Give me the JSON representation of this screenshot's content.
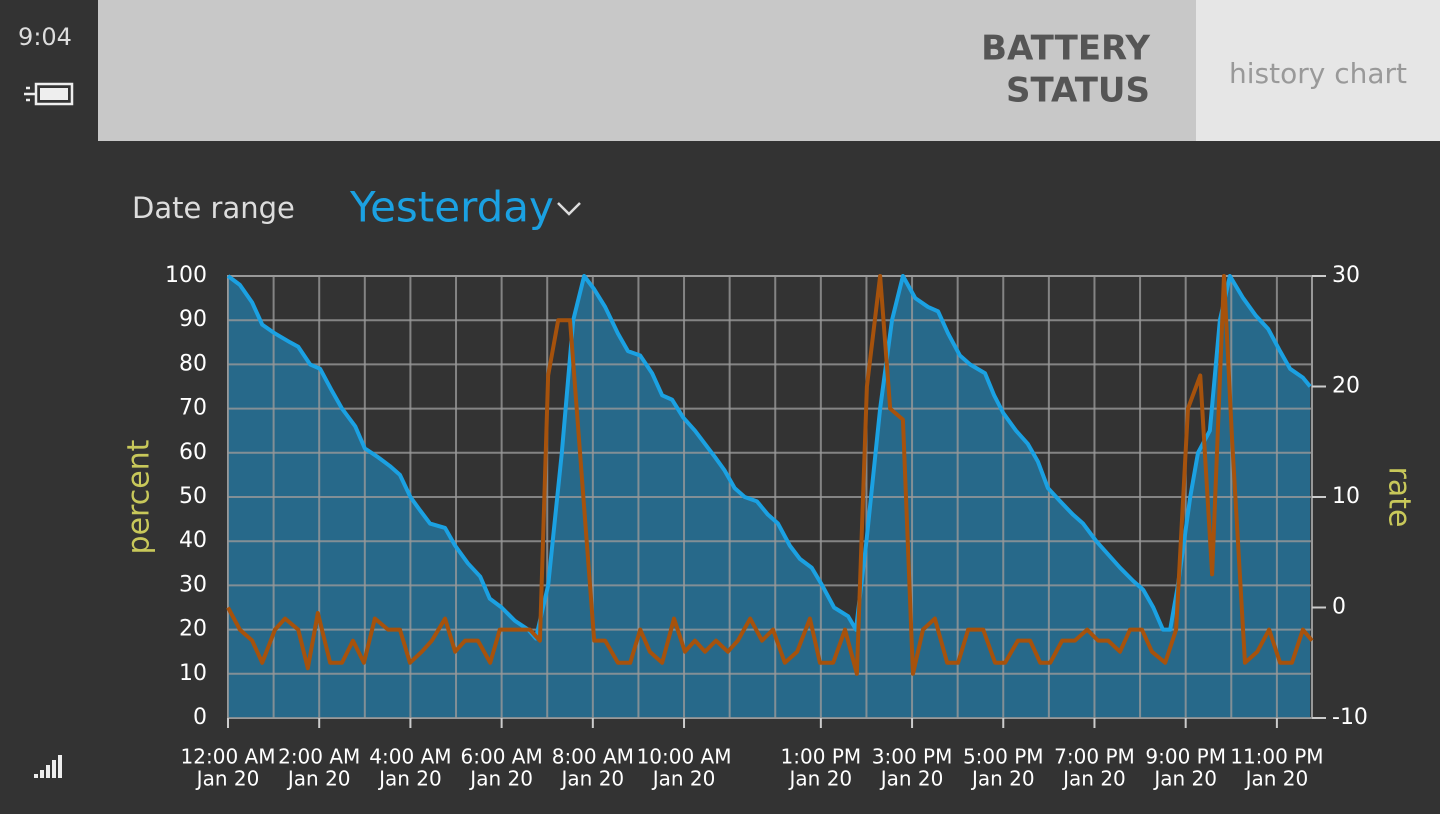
{
  "status_bar": {
    "time": "9:04"
  },
  "header": {
    "title": [
      "BATTERY",
      "STATUS"
    ],
    "tab": "history chart"
  },
  "date_range": {
    "label": "Date range",
    "value": "Yesterday"
  },
  "chart_data": {
    "type": "line",
    "ylabel": "percent",
    "y2label": "rate",
    "xlim": [
      0,
      23.77
    ],
    "ylim": [
      0,
      100
    ],
    "y2lim": [
      -10,
      30
    ],
    "yticks": [
      0,
      10,
      20,
      30,
      40,
      50,
      60,
      70,
      80,
      90,
      100
    ],
    "y2ticks": [
      -10,
      0,
      10,
      20,
      30
    ],
    "grid": true,
    "xticks": [
      {
        "value": 0,
        "label": "12:00 AM",
        "date": "Jan 20"
      },
      {
        "value": 1,
        "label": null
      },
      {
        "value": 2,
        "label": "2:00 AM",
        "date": "Jan 20"
      },
      {
        "value": 3,
        "label": null
      },
      {
        "value": 4,
        "label": "4:00 AM",
        "date": "Jan 20"
      },
      {
        "value": 5,
        "label": null
      },
      {
        "value": 6,
        "label": "6:00 AM",
        "date": "Jan 20"
      },
      {
        "value": 7,
        "label": null
      },
      {
        "value": 8,
        "label": "8:00 AM",
        "date": "Jan 20"
      },
      {
        "value": 9,
        "label": null
      },
      {
        "value": 10,
        "label": "10:00 AM",
        "date": "Jan 20"
      },
      {
        "value": 11,
        "label": null
      },
      {
        "value": 12,
        "label": null
      },
      {
        "value": 13,
        "label": "1:00 PM",
        "date": "Jan 20"
      },
      {
        "value": 14,
        "label": null
      },
      {
        "value": 15,
        "label": "3:00 PM",
        "date": "Jan 20"
      },
      {
        "value": 16,
        "label": null
      },
      {
        "value": 17,
        "label": "5:00 PM",
        "date": "Jan 20"
      },
      {
        "value": 18,
        "label": null
      },
      {
        "value": 19,
        "label": "7:00 PM",
        "date": "Jan 20"
      },
      {
        "value": 20,
        "label": null
      },
      {
        "value": 21,
        "label": "9:00 PM",
        "date": "Jan 20"
      },
      {
        "value": 22,
        "label": null
      },
      {
        "value": 23,
        "label": "11:00 PM",
        "date": "Jan 20"
      }
    ],
    "series": [
      {
        "color": "#1ba1e2",
        "fill": "#27698a",
        "x": [
          0,
          0.26,
          0.53,
          0.75,
          1.03,
          1.36,
          1.54,
          1.8,
          2.02,
          2.28,
          2.5,
          2.79,
          3.0,
          3.29,
          3.55,
          3.77,
          4.0,
          4.21,
          4.43,
          4.76,
          4.98,
          5.26,
          5.53,
          5.74,
          6.0,
          6.29,
          6.58,
          6.75,
          7.02,
          7.32,
          7.57,
          7.81,
          8.03,
          8.27,
          8.55,
          8.77,
          9.04,
          9.3,
          9.52,
          9.74,
          9.98,
          10.24,
          10.46,
          10.68,
          10.89,
          11.11,
          11.33,
          11.6,
          11.84,
          12.06,
          12.32,
          12.54,
          12.8,
          13.03,
          13.29,
          13.6,
          13.77,
          14.0,
          14.3,
          14.56,
          14.8,
          15.07,
          15.35,
          15.57,
          15.79,
          16.05,
          16.27,
          16.6,
          16.8,
          17.0,
          17.28,
          17.54,
          17.76,
          17.98,
          18.25,
          18.53,
          18.75,
          19.04,
          19.3,
          19.56,
          19.85,
          20.07,
          20.29,
          20.5,
          20.66,
          20.83,
          21.1,
          21.27,
          21.53,
          21.75,
          21.97,
          22.26,
          22.54,
          22.81,
          23.07,
          23.29,
          23.57,
          23.73
        ],
        "values": [
          100,
          98,
          94,
          89,
          87,
          85,
          84,
          80,
          79,
          74,
          70,
          66,
          61,
          59,
          57,
          55,
          50,
          47,
          44,
          43,
          39,
          35,
          32,
          27,
          25,
          22,
          20,
          18,
          30,
          60,
          90,
          100,
          97,
          93,
          87,
          83,
          82,
          78,
          73,
          72,
          68,
          65,
          62,
          59,
          56,
          52,
          50,
          49,
          46,
          44,
          39,
          36,
          34,
          30,
          25,
          23,
          20,
          40,
          70,
          90,
          100,
          95,
          93,
          92,
          87,
          82,
          80,
          78,
          73,
          69,
          65,
          62,
          58,
          52,
          49,
          46,
          44,
          40,
          37,
          34,
          31,
          29,
          25,
          20,
          20,
          30,
          50,
          60,
          65,
          90,
          100,
          95,
          91,
          88,
          83,
          79,
          77,
          75
        ]
      },
      {
        "color": "#a6520c",
        "axis": "y2",
        "x": [
          0,
          0.26,
          0.53,
          0.75,
          1.03,
          1.25,
          1.54,
          1.75,
          1.97,
          2.24,
          2.5,
          2.74,
          2.98,
          3.22,
          3.51,
          3.77,
          3.99,
          4.25,
          4.47,
          4.76,
          4.98,
          5.2,
          5.48,
          5.75,
          5.96,
          6.4,
          6.62,
          6.84,
          7.02,
          7.24,
          7.5,
          8.03,
          8.27,
          8.55,
          8.82,
          9.04,
          9.25,
          9.52,
          9.78,
          10.02,
          10.24,
          10.46,
          10.7,
          10.96,
          11.18,
          11.45,
          11.71,
          11.95,
          12.21,
          12.48,
          12.76,
          12.98,
          13.27,
          13.53,
          13.79,
          14.01,
          14.3,
          14.52,
          14.8,
          15.02,
          15.24,
          15.5,
          15.77,
          16.01,
          16.23,
          16.56,
          16.82,
          17.04,
          17.32,
          17.59,
          17.81,
          18.03,
          18.29,
          18.57,
          18.84,
          19.08,
          19.3,
          19.56,
          19.78,
          20.04,
          20.26,
          20.55,
          20.79,
          21.05,
          21.32,
          21.58,
          21.84,
          22.02,
          22.3,
          22.57,
          22.83,
          23.07,
          23.33,
          23.57,
          23.77
        ],
        "values": [
          0,
          -2,
          -3,
          -5,
          -2,
          -1,
          -2,
          -5.5,
          -0.5,
          -5,
          -5,
          -3,
          -5,
          -1,
          -2,
          -2,
          -5,
          -4,
          -3,
          -1,
          -4,
          -3,
          -3,
          -5,
          -2,
          -2,
          -2,
          -3,
          21,
          26,
          26,
          -3,
          -3,
          -5,
          -5,
          -2,
          -4,
          -5,
          -1,
          -4,
          -3,
          -4,
          -3,
          -4,
          -3,
          -1,
          -3,
          -2,
          -5,
          -4,
          -1,
          -5,
          -5,
          -2,
          -6,
          20,
          30,
          18,
          17,
          -6,
          -2,
          -1,
          -5,
          -5,
          -2,
          -2,
          -5,
          -5,
          -3,
          -3,
          -5,
          -5,
          -3,
          -3,
          -2,
          -3,
          -3,
          -4,
          -2,
          -2,
          -4,
          -5,
          -2,
          18,
          21,
          3,
          30,
          15,
          -5,
          -4,
          -2,
          -5,
          -5,
          -2,
          -3
        ]
      }
    ]
  }
}
